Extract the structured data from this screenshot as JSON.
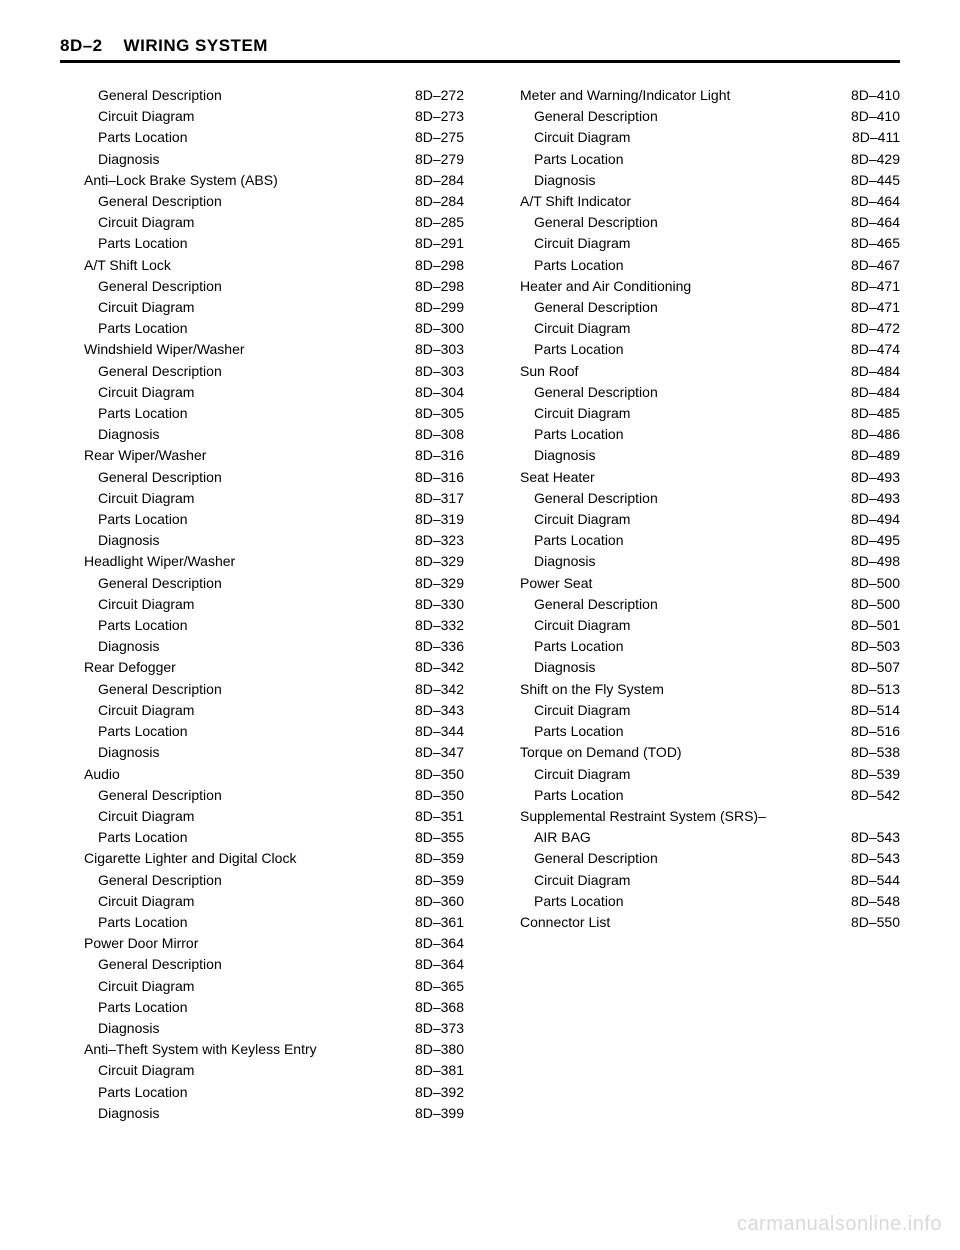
{
  "header": {
    "section": "8D–2",
    "title": "WIRING SYSTEM"
  },
  "watermark": "carmanualsonline.info",
  "columns": [
    [
      {
        "label": "General Description",
        "page": "8D–272",
        "indent": 1
      },
      {
        "label": "Circuit Diagram",
        "page": "8D–273",
        "indent": 1
      },
      {
        "label": "Parts Location",
        "page": "8D–275",
        "indent": 1
      },
      {
        "label": "Diagnosis",
        "page": "8D–279",
        "indent": 1
      },
      {
        "label": "Anti–Lock Brake System (ABS)",
        "page": "8D–284",
        "indent": 0
      },
      {
        "label": "General Description",
        "page": "8D–284",
        "indent": 1
      },
      {
        "label": "Circuit Diagram",
        "page": "8D–285",
        "indent": 1
      },
      {
        "label": "Parts Location",
        "page": "8D–291",
        "indent": 1
      },
      {
        "label": "A/T Shift Lock",
        "page": "8D–298",
        "indent": 0
      },
      {
        "label": "General Description",
        "page": "8D–298",
        "indent": 1
      },
      {
        "label": "Circuit Diagram",
        "page": "8D–299",
        "indent": 1
      },
      {
        "label": "Parts Location",
        "page": "8D–300",
        "indent": 1
      },
      {
        "label": "Windshield Wiper/Washer",
        "page": "8D–303",
        "indent": 0
      },
      {
        "label": "General Description",
        "page": "8D–303",
        "indent": 1
      },
      {
        "label": "Circuit Diagram",
        "page": "8D–304",
        "indent": 1
      },
      {
        "label": "Parts Location",
        "page": "8D–305",
        "indent": 1
      },
      {
        "label": "Diagnosis",
        "page": "8D–308",
        "indent": 1
      },
      {
        "label": "Rear Wiper/Washer",
        "page": "8D–316",
        "indent": 0
      },
      {
        "label": "General Description",
        "page": "8D–316",
        "indent": 1
      },
      {
        "label": "Circuit Diagram",
        "page": "8D–317",
        "indent": 1
      },
      {
        "label": "Parts Location",
        "page": "8D–319",
        "indent": 1
      },
      {
        "label": "Diagnosis",
        "page": "8D–323",
        "indent": 1
      },
      {
        "label": "Headlight Wiper/Washer",
        "page": "8D–329",
        "indent": 0
      },
      {
        "label": "General Description",
        "page": "8D–329",
        "indent": 1
      },
      {
        "label": "Circuit Diagram",
        "page": "8D–330",
        "indent": 1
      },
      {
        "label": "Parts Location",
        "page": "8D–332",
        "indent": 1
      },
      {
        "label": "Diagnosis",
        "page": "8D–336",
        "indent": 1
      },
      {
        "label": "Rear Defogger",
        "page": "8D–342",
        "indent": 0
      },
      {
        "label": "General Description",
        "page": "8D–342",
        "indent": 1
      },
      {
        "label": "Circuit Diagram",
        "page": "8D–343",
        "indent": 1
      },
      {
        "label": "Parts Location",
        "page": "8D–344",
        "indent": 1
      },
      {
        "label": "Diagnosis",
        "page": "8D–347",
        "indent": 1
      },
      {
        "label": "Audio",
        "page": "8D–350",
        "indent": 0
      },
      {
        "label": "General Description",
        "page": "8D–350",
        "indent": 1
      },
      {
        "label": "Circuit Diagram",
        "page": "8D–351",
        "indent": 1
      },
      {
        "label": "Parts Location",
        "page": "8D–355",
        "indent": 1
      },
      {
        "label": "Cigarette Lighter and Digital Clock",
        "page": "8D–359",
        "indent": 0
      },
      {
        "label": "General Description",
        "page": "8D–359",
        "indent": 1
      },
      {
        "label": "Circuit Diagram",
        "page": "8D–360",
        "indent": 1
      },
      {
        "label": "Parts Location",
        "page": "8D–361",
        "indent": 1
      },
      {
        "label": "Power Door Mirror",
        "page": "8D–364",
        "indent": 0
      },
      {
        "label": "General Description",
        "page": "8D–364",
        "indent": 1
      },
      {
        "label": "Circuit Diagram",
        "page": "8D–365",
        "indent": 1
      },
      {
        "label": "Parts Location",
        "page": "8D–368",
        "indent": 1
      },
      {
        "label": "Diagnosis",
        "page": "8D–373",
        "indent": 1
      },
      {
        "label": "Anti–Theft System with Keyless Entry",
        "page": "8D–380",
        "indent": 0
      },
      {
        "label": "Circuit Diagram",
        "page": "8D–381",
        "indent": 1
      },
      {
        "label": "Parts Location",
        "page": "8D–392",
        "indent": 1
      },
      {
        "label": "Diagnosis",
        "page": "8D–399",
        "indent": 1
      }
    ],
    [
      {
        "label": "Meter and Warning/Indicator Light",
        "page": "8D–410",
        "indent": 0
      },
      {
        "label": "General Description",
        "page": "8D–410",
        "indent": 1
      },
      {
        "label": "Circuit Diagram",
        "page": "8D–411",
        "indent": 1
      },
      {
        "label": "Parts Location",
        "page": "8D–429",
        "indent": 1
      },
      {
        "label": "Diagnosis",
        "page": "8D–445",
        "indent": 1
      },
      {
        "label": "A/T Shift Indicator",
        "page": "8D–464",
        "indent": 0
      },
      {
        "label": "General Description",
        "page": "8D–464",
        "indent": 1
      },
      {
        "label": "Circuit Diagram",
        "page": "8D–465",
        "indent": 1
      },
      {
        "label": "Parts Location",
        "page": "8D–467",
        "indent": 1
      },
      {
        "label": "Heater and Air Conditioning",
        "page": "8D–471",
        "indent": 0
      },
      {
        "label": "General Description",
        "page": "8D–471",
        "indent": 1
      },
      {
        "label": "Circuit Diagram",
        "page": "8D–472",
        "indent": 1
      },
      {
        "label": "Parts Location",
        "page": "8D–474",
        "indent": 1
      },
      {
        "label": "Sun Roof",
        "page": "8D–484",
        "indent": 0
      },
      {
        "label": "General Description",
        "page": "8D–484",
        "indent": 1
      },
      {
        "label": "Circuit Diagram",
        "page": "8D–485",
        "indent": 1
      },
      {
        "label": "Parts Location",
        "page": "8D–486",
        "indent": 1
      },
      {
        "label": "Diagnosis",
        "page": "8D–489",
        "indent": 1
      },
      {
        "label": "Seat Heater",
        "page": "8D–493",
        "indent": 0
      },
      {
        "label": "General Description",
        "page": "8D–493",
        "indent": 1
      },
      {
        "label": "Circuit Diagram",
        "page": "8D–494",
        "indent": 1
      },
      {
        "label": "Parts Location",
        "page": "8D–495",
        "indent": 1
      },
      {
        "label": "Diagnosis",
        "page": "8D–498",
        "indent": 1
      },
      {
        "label": "Power Seat",
        "page": "8D–500",
        "indent": 0
      },
      {
        "label": "General Description",
        "page": "8D–500",
        "indent": 1
      },
      {
        "label": "Circuit Diagram",
        "page": "8D–501",
        "indent": 1
      },
      {
        "label": "Parts Location",
        "page": "8D–503",
        "indent": 1
      },
      {
        "label": "Diagnosis",
        "page": "8D–507",
        "indent": 1
      },
      {
        "label": "Shift on the Fly System",
        "page": "8D–513",
        "indent": 0
      },
      {
        "label": "Circuit Diagram",
        "page": "8D–514",
        "indent": 1
      },
      {
        "label": "Parts Location",
        "page": "8D–516",
        "indent": 1
      },
      {
        "label": "Torque on Demand (TOD)",
        "page": "8D–538",
        "indent": 0
      },
      {
        "label": "Circuit Diagram",
        "page": "8D–539",
        "indent": 1
      },
      {
        "label": "Parts Location",
        "page": "8D–542",
        "indent": 1
      },
      {
        "label": "Supplemental Restraint System (SRS)–",
        "page": "",
        "indent": 0,
        "noleader": true
      },
      {
        "label": "AIR BAG",
        "page": "8D–543",
        "indent": 1
      },
      {
        "label": "General Description",
        "page": "8D–543",
        "indent": 1
      },
      {
        "label": "Circuit Diagram",
        "page": "8D–544",
        "indent": 1
      },
      {
        "label": "Parts Location",
        "page": "8D–548",
        "indent": 1
      },
      {
        "label": "Connector List",
        "page": "8D–550",
        "indent": 0
      }
    ]
  ]
}
